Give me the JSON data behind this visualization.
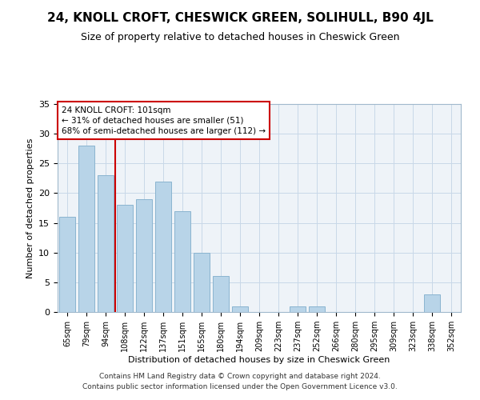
{
  "title": "24, KNOLL CROFT, CHESWICK GREEN, SOLIHULL, B90 4JL",
  "subtitle": "Size of property relative to detached houses in Cheswick Green",
  "xlabel": "Distribution of detached houses by size in Cheswick Green",
  "ylabel": "Number of detached properties",
  "footer_line1": "Contains HM Land Registry data © Crown copyright and database right 2024.",
  "footer_line2": "Contains public sector information licensed under the Open Government Licence v3.0.",
  "categories": [
    "65sqm",
    "79sqm",
    "94sqm",
    "108sqm",
    "122sqm",
    "137sqm",
    "151sqm",
    "165sqm",
    "180sqm",
    "194sqm",
    "209sqm",
    "223sqm",
    "237sqm",
    "252sqm",
    "266sqm",
    "280sqm",
    "295sqm",
    "309sqm",
    "323sqm",
    "338sqm",
    "352sqm"
  ],
  "values": [
    16,
    28,
    23,
    18,
    19,
    22,
    17,
    10,
    6,
    1,
    0,
    0,
    1,
    1,
    0,
    0,
    0,
    0,
    0,
    3,
    0
  ],
  "bar_color": "#b8d4e8",
  "bar_edge_color": "#8ab4d0",
  "marker_color": "#cc0000",
  "ylim": [
    0,
    35
  ],
  "yticks": [
    0,
    5,
    10,
    15,
    20,
    25,
    30,
    35
  ],
  "annotation_title": "24 KNOLL CROFT: 101sqm",
  "annotation_line1": "← 31% of detached houses are smaller (51)",
  "annotation_line2": "68% of semi-detached houses are larger (112) →",
  "annotation_box_color": "#ffffff",
  "annotation_box_edge_color": "#cc0000",
  "bg_color": "#eef3f8",
  "title_fontsize": 11,
  "subtitle_fontsize": 9
}
